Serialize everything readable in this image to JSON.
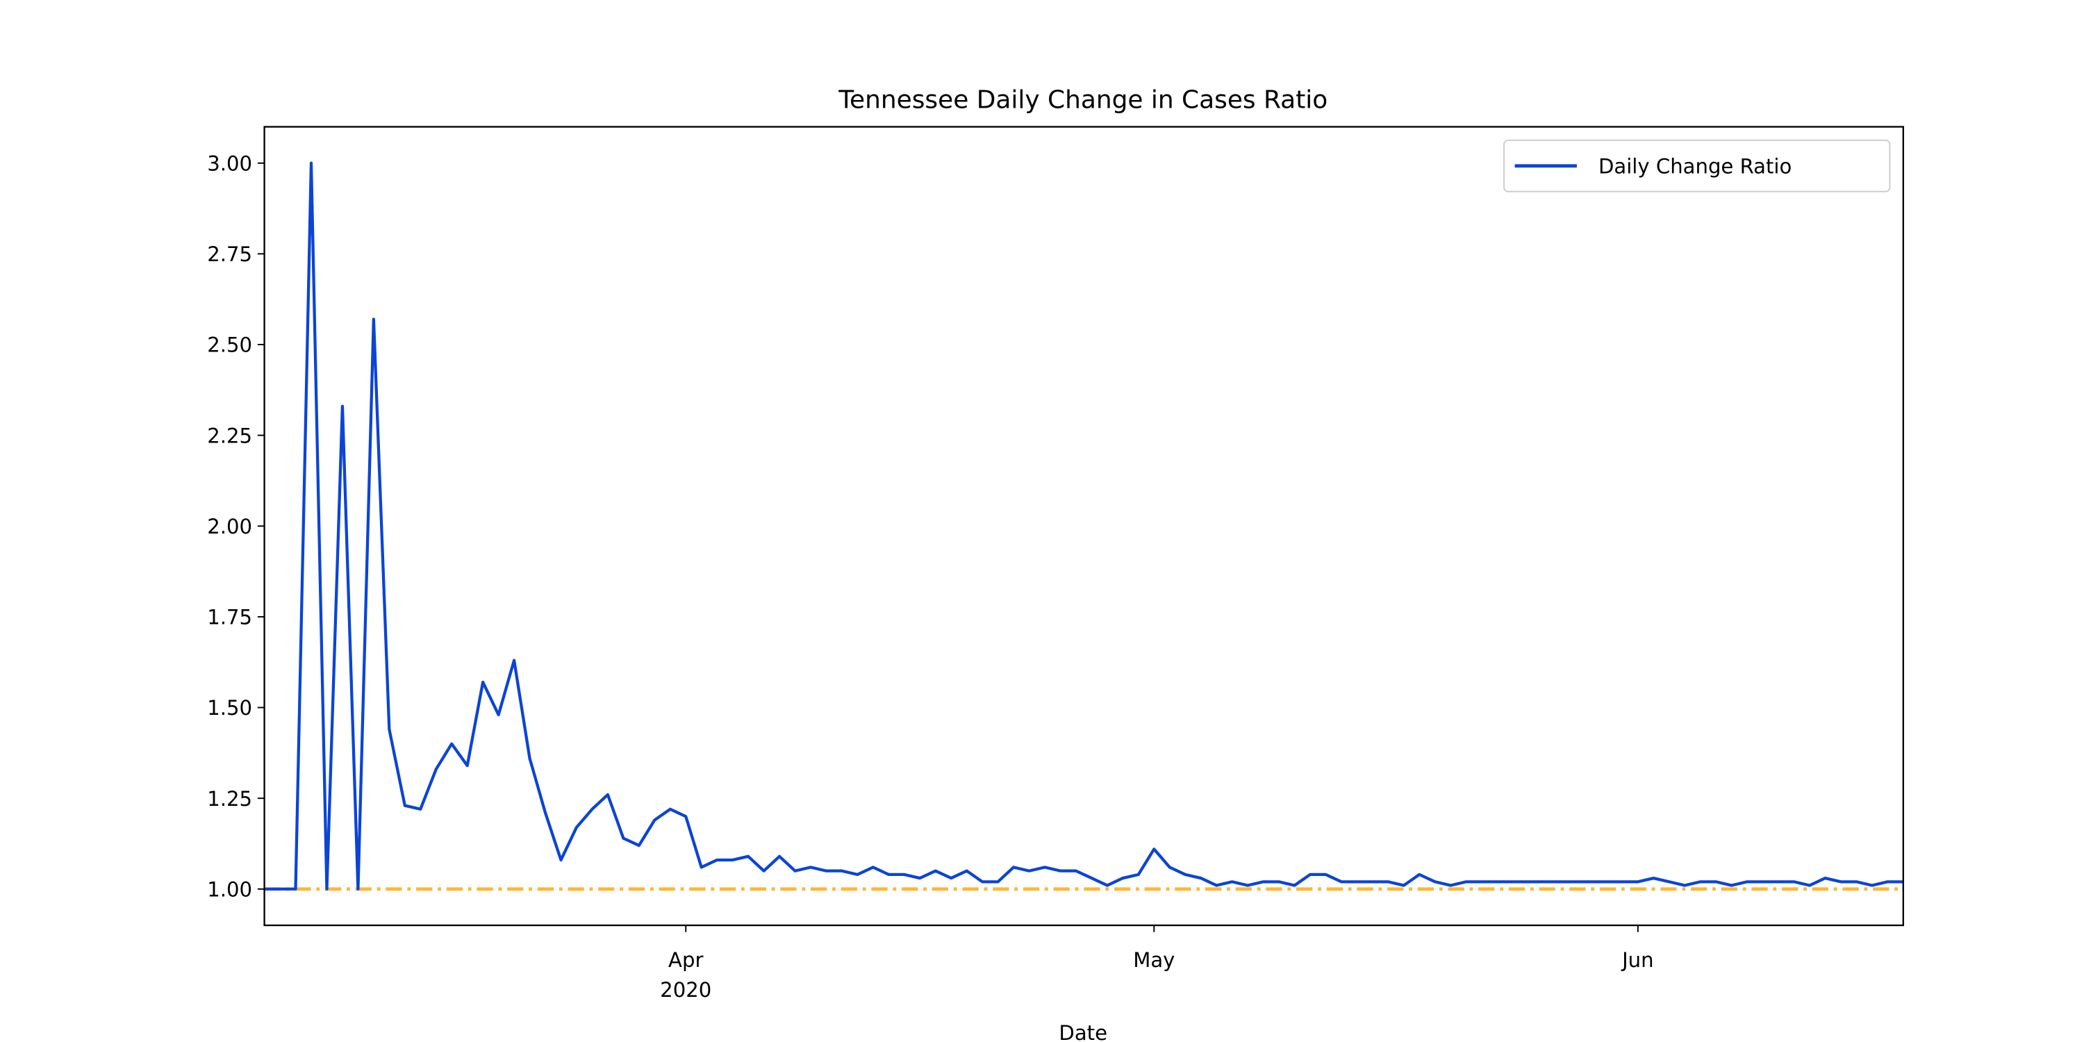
{
  "chart_data": {
    "type": "line",
    "title": "Tennessee Daily Change in Cases Ratio",
    "xlabel": "Date",
    "x": [
      "2020-03-05",
      "2020-03-06",
      "2020-03-07",
      "2020-03-08",
      "2020-03-09",
      "2020-03-10",
      "2020-03-11",
      "2020-03-12",
      "2020-03-13",
      "2020-03-14",
      "2020-03-15",
      "2020-03-16",
      "2020-03-17",
      "2020-03-18",
      "2020-03-19",
      "2020-03-20",
      "2020-03-21",
      "2020-03-22",
      "2020-03-23",
      "2020-03-24",
      "2020-03-25",
      "2020-03-26",
      "2020-03-27",
      "2020-03-28",
      "2020-03-29",
      "2020-03-30",
      "2020-03-31",
      "2020-04-01",
      "2020-04-02",
      "2020-04-03",
      "2020-04-04",
      "2020-04-05",
      "2020-04-06",
      "2020-04-07",
      "2020-04-08",
      "2020-04-09",
      "2020-04-10",
      "2020-04-11",
      "2020-04-12",
      "2020-04-13",
      "2020-04-14",
      "2020-04-15",
      "2020-04-16",
      "2020-04-17",
      "2020-04-18",
      "2020-04-19",
      "2020-04-20",
      "2020-04-21",
      "2020-04-22",
      "2020-04-23",
      "2020-04-24",
      "2020-04-25",
      "2020-04-26",
      "2020-04-27",
      "2020-04-28",
      "2020-04-29",
      "2020-04-30",
      "2020-05-01",
      "2020-05-02",
      "2020-05-03",
      "2020-05-04",
      "2020-05-05",
      "2020-05-06",
      "2020-05-07",
      "2020-05-08",
      "2020-05-09",
      "2020-05-10",
      "2020-05-11",
      "2020-05-12",
      "2020-05-13",
      "2020-05-14",
      "2020-05-15",
      "2020-05-16",
      "2020-05-17",
      "2020-05-18",
      "2020-05-19",
      "2020-05-20",
      "2020-05-21",
      "2020-05-22",
      "2020-05-23",
      "2020-05-24",
      "2020-05-25",
      "2020-05-26",
      "2020-05-27",
      "2020-05-28",
      "2020-05-29",
      "2020-05-30",
      "2020-05-31",
      "2020-06-01",
      "2020-06-02",
      "2020-06-03",
      "2020-06-04",
      "2020-06-05",
      "2020-06-06",
      "2020-06-07",
      "2020-06-08",
      "2020-06-09",
      "2020-06-10",
      "2020-06-11",
      "2020-06-12",
      "2020-06-13",
      "2020-06-14",
      "2020-06-15",
      "2020-06-16",
      "2020-06-17",
      "2020-06-18"
    ],
    "series": [
      {
        "name": "Daily Change Ratio",
        "color": "#0b44d6",
        "values": [
          1.0,
          1.0,
          1.0,
          3.0,
          1.0,
          2.33,
          1.0,
          2.57,
          1.44,
          1.23,
          1.22,
          1.33,
          1.4,
          1.34,
          1.57,
          1.48,
          1.63,
          1.36,
          1.21,
          1.08,
          1.17,
          1.22,
          1.26,
          1.14,
          1.12,
          1.19,
          1.22,
          1.2,
          1.06,
          1.08,
          1.08,
          1.09,
          1.05,
          1.09,
          1.05,
          1.06,
          1.05,
          1.05,
          1.04,
          1.06,
          1.04,
          1.04,
          1.03,
          1.05,
          1.03,
          1.05,
          1.02,
          1.02,
          1.06,
          1.05,
          1.06,
          1.05,
          1.05,
          1.03,
          1.01,
          1.03,
          1.04,
          1.11,
          1.06,
          1.04,
          1.03,
          1.01,
          1.02,
          1.01,
          1.02,
          1.02,
          1.01,
          1.04,
          1.04,
          1.02,
          1.02,
          1.02,
          1.02,
          1.01,
          1.04,
          1.02,
          1.01,
          1.02,
          1.02,
          1.02,
          1.02,
          1.02,
          1.02,
          1.02,
          1.02,
          1.02,
          1.02,
          1.02,
          1.02,
          1.03,
          1.02,
          1.01,
          1.02,
          1.02,
          1.01,
          1.02,
          1.02,
          1.02,
          1.02,
          1.01,
          1.03,
          1.02,
          1.02,
          1.01,
          1.02,
          1.02
        ]
      }
    ],
    "hline": {
      "value": 1,
      "color": "#ffb833"
    },
    "xlim": [
      "2020-03-05",
      "2020-06-18"
    ],
    "xticks": [
      {
        "value": "2020-04-01",
        "label": "Apr\n2020"
      },
      {
        "value": "2020-05-01",
        "label": "May"
      },
      {
        "value": "2020-06-01",
        "label": "Jun"
      }
    ],
    "ylim": [
      0.9,
      3.1
    ],
    "yticks": [
      {
        "value": 1,
        "label": "1.00"
      },
      {
        "value": 1.25,
        "label": "1.25"
      },
      {
        "value": 1.5,
        "label": "1.50"
      },
      {
        "value": 1.75,
        "label": "1.75"
      },
      {
        "value": 2,
        "label": "2.00"
      },
      {
        "value": 2.25,
        "label": "2.25"
      },
      {
        "value": 2.5,
        "label": "2.50"
      },
      {
        "value": 2.75,
        "label": "2.75"
      },
      {
        "value": 3,
        "label": "3.00"
      }
    ],
    "grid": false,
    "legend": "upper-right"
  }
}
